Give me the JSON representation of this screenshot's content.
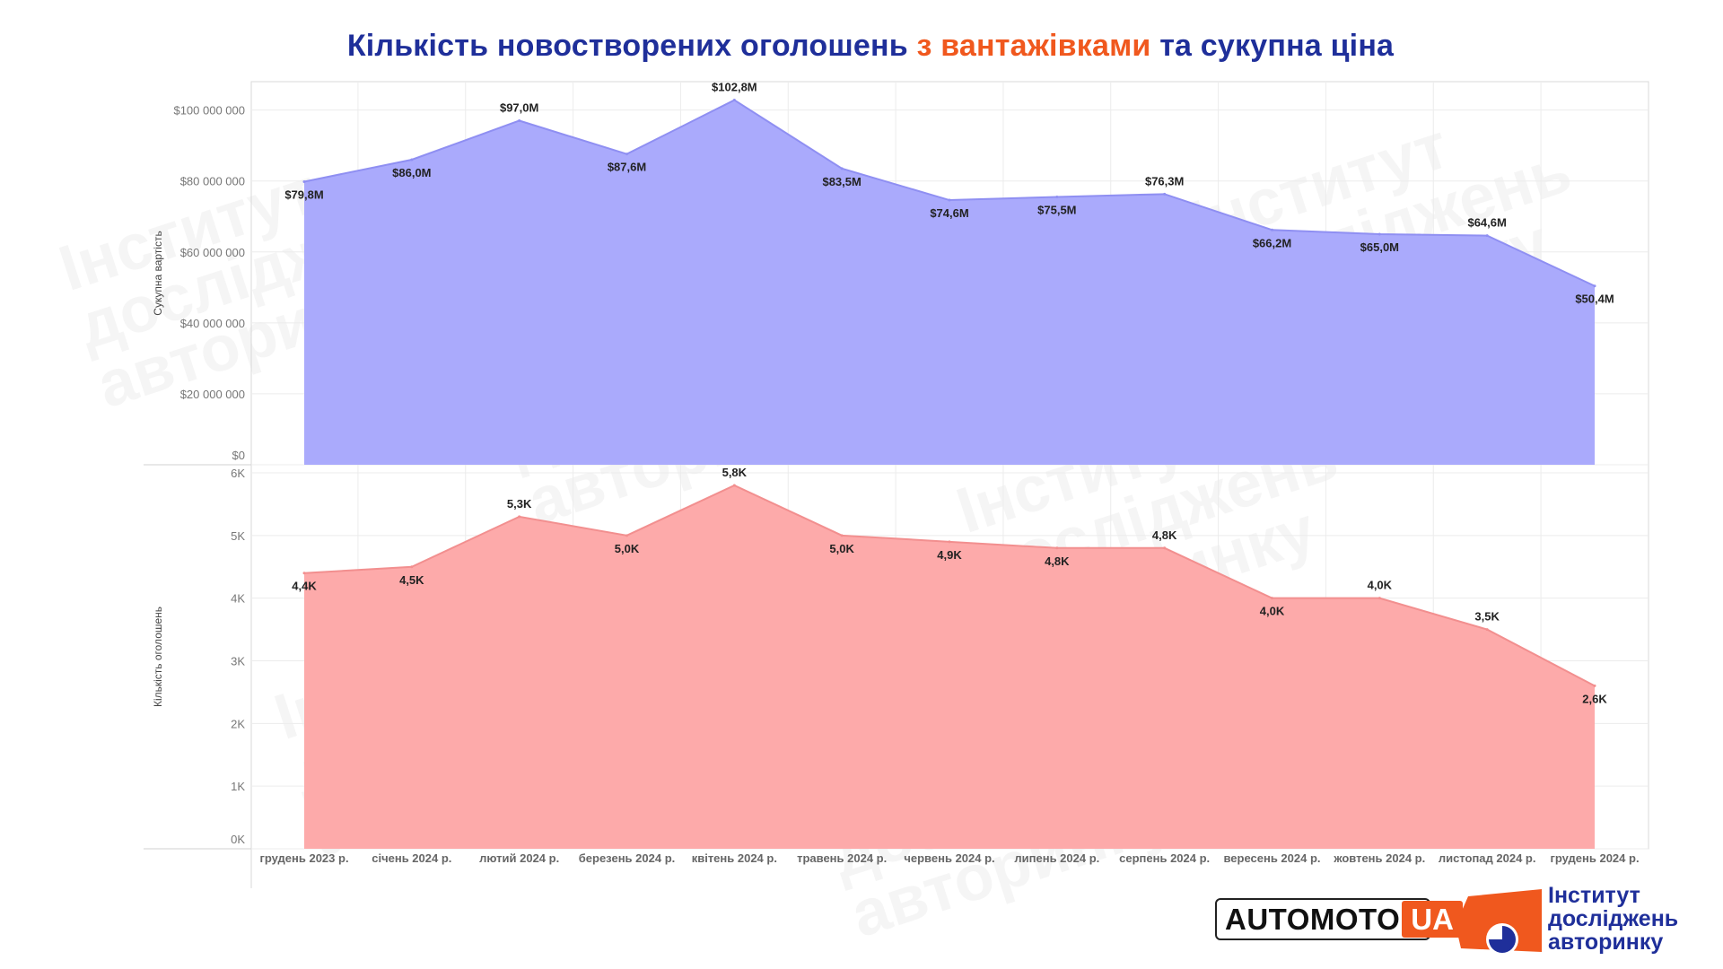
{
  "title": {
    "part1": "Кількість новостворених оголошень",
    "part2": "з вантажівками",
    "part3": "та сукупна ціна"
  },
  "colors": {
    "title_blue": "#1f2f9a",
    "title_orange": "#f0581e",
    "value_area": "#aaaafc",
    "value_line": "#8f8ff2",
    "count_area": "#fdaaaa",
    "count_line": "#f28f8f"
  },
  "chart_data": {
    "type": "area",
    "categories": [
      "грудень 2023 р.",
      "січень 2024 р.",
      "лютий 2024 р.",
      "березень 2024 р.",
      "квітень 2024 р.",
      "травень 2024 р.",
      "червень 2024 р.",
      "липень 2024 р.",
      "серпень 2024 р.",
      "вересень 2024 р.",
      "жовтень 2024 р.",
      "листопад 2024 р.",
      "грудень 2024 р."
    ],
    "panels": [
      {
        "ylabel": "Сукупна вартість",
        "ylim": [
          0,
          108000000
        ],
        "yticks": [
          0,
          20000000,
          40000000,
          60000000,
          80000000,
          100000000
        ],
        "ytick_labels": [
          "$0",
          "$20 000 000",
          "$40 000 000",
          "$60 000 000",
          "$80 000 000",
          "$100 000 000"
        ],
        "values": [
          79800000,
          86000000,
          97000000,
          87600000,
          102800000,
          83500000,
          74600000,
          75500000,
          76300000,
          66200000,
          65000000,
          64600000,
          50400000
        ],
        "labels": [
          "$79,8M",
          "$86,0M",
          "$97,0M",
          "$87,6M",
          "$102,8M",
          "$83,5M",
          "$74,6M",
          "$75,5M",
          "$76,3M",
          "$66,2M",
          "$65,0M",
          "$64,6M",
          "$50,4M"
        ],
        "label_pos": [
          "below",
          "below",
          "above",
          "below",
          "above",
          "below",
          "below",
          "below",
          "above",
          "below",
          "below",
          "above",
          "below"
        ],
        "grid": true
      },
      {
        "ylabel": "Кількість оголошень",
        "ylim": [
          0,
          6000
        ],
        "yticks": [
          0,
          1000,
          2000,
          3000,
          4000,
          5000,
          6000
        ],
        "ytick_labels": [
          "0K",
          "1K",
          "2K",
          "3K",
          "4K",
          "5K",
          "6K"
        ],
        "values": [
          4400,
          4500,
          5300,
          5000,
          5800,
          5000,
          4900,
          4800,
          4800,
          4000,
          4000,
          3500,
          2600
        ],
        "labels": [
          "4,4K",
          "4,5K",
          "5,3K",
          "5,0K",
          "5,8K",
          "5,0K",
          "4,9K",
          "4,8K",
          "4,8K",
          "4,0K",
          "4,0K",
          "3,5K",
          "2,6K"
        ],
        "label_pos": [
          "below",
          "below",
          "above",
          "below",
          "above",
          "below",
          "below",
          "below",
          "above",
          "below",
          "above",
          "above",
          "below"
        ],
        "grid": true
      }
    ]
  },
  "logos": {
    "automoto_part1": "AUTOMOTO",
    "automoto_part2": "UA",
    "institute_lines": [
      "Інститут",
      "досліджень",
      "авторинку"
    ]
  },
  "watermark": [
    "Інститут",
    "досліджень",
    "авторинку"
  ]
}
